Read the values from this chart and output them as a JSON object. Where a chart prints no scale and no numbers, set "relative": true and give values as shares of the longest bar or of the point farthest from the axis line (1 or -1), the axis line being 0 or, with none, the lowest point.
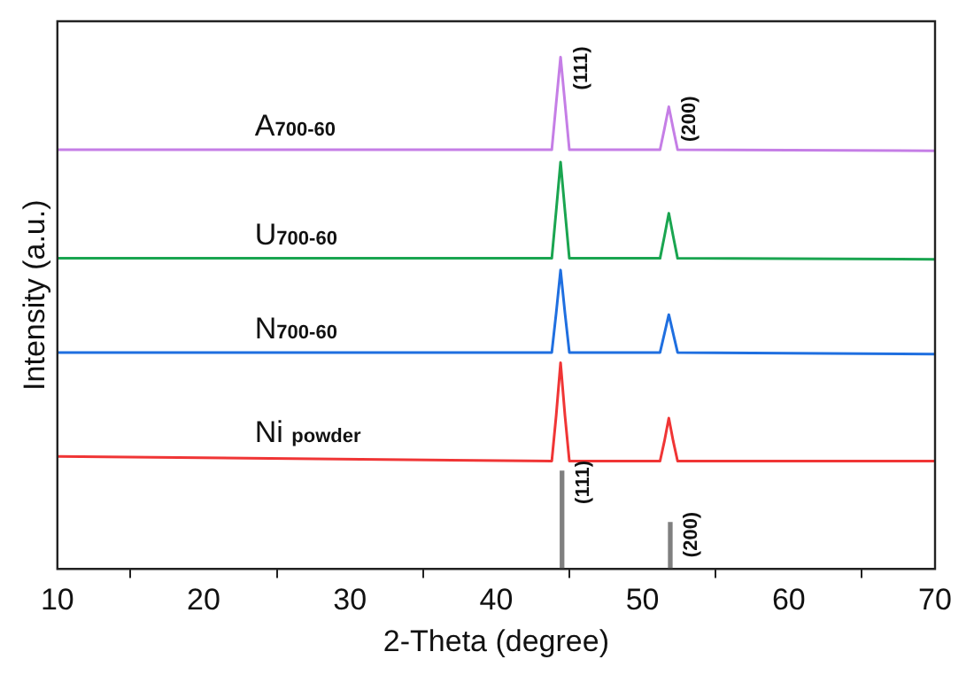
{
  "chart_data": {
    "type": "line",
    "xlabel": "2-Theta (degree)",
    "ylabel": "Intensity (a.u.)",
    "relative": true,
    "xlim": [
      10,
      70
    ],
    "xticks": [
      10,
      20,
      30,
      40,
      50,
      60,
      70
    ],
    "legend": false,
    "grid": false,
    "marker": "none",
    "series": [
      {
        "name": "Ni $_{powder}$",
        "color": "#f03535",
        "x": [
          10,
          43.8,
          44.1,
          44.4,
          44.7,
          45.0,
          51.2,
          51.5,
          51.8,
          52.1,
          52.4,
          70
        ],
        "values": [
          0.22,
          0.211,
          0.3,
          0.403,
          0.3,
          0.211,
          0.211,
          0.25,
          0.295,
          0.25,
          0.211,
          0.211
        ]
      },
      {
        "name": "N$_{700-60}$",
        "color": "#1f6fe0",
        "x": [
          10,
          43.8,
          44.1,
          44.4,
          44.7,
          45.0,
          51.2,
          51.5,
          51.8,
          52.1,
          52.4,
          70
        ],
        "values": [
          0.423,
          0.423,
          0.5,
          0.584,
          0.5,
          0.423,
          0.423,
          0.46,
          0.497,
          0.46,
          0.423,
          0.42
        ]
      },
      {
        "name": "U$_{700-60}$",
        "color": "#1aa550",
        "x": [
          10,
          43.8,
          44.1,
          44.4,
          44.7,
          45.0,
          51.2,
          51.5,
          51.8,
          52.1,
          52.4,
          70
        ],
        "values": [
          0.607,
          0.607,
          0.7,
          0.795,
          0.7,
          0.607,
          0.607,
          0.65,
          0.695,
          0.65,
          0.607,
          0.605
        ]
      },
      {
        "name": "A$_{700-60}$",
        "color": "#c57ee6",
        "x": [
          10,
          43.8,
          44.1,
          44.4,
          44.7,
          45.0,
          51.2,
          51.5,
          51.8,
          52.1,
          52.4,
          70
        ],
        "values": [
          0.819,
          0.819,
          0.91,
          1,
          0.91,
          0.819,
          0.819,
          0.86,
          0.903,
          0.86,
          0.819,
          0.817
        ]
      },
      {
        "type": "bar",
        "color": "#808080",
        "x": [
          44.5,
          51.9
        ],
        "values": [
          0.191,
          0.091
        ]
      }
    ],
    "annotations": [
      {
        "text": "(111)",
        "x": 44.4,
        "y": 1
      },
      {
        "text": "(200)",
        "x": 51.8,
        "y": 0.903
      },
      {
        "text": "(111)",
        "x": 44.5,
        "y": 0.191
      },
      {
        "text": "(200)",
        "x": 51.9,
        "y": 0.091
      }
    ]
  }
}
